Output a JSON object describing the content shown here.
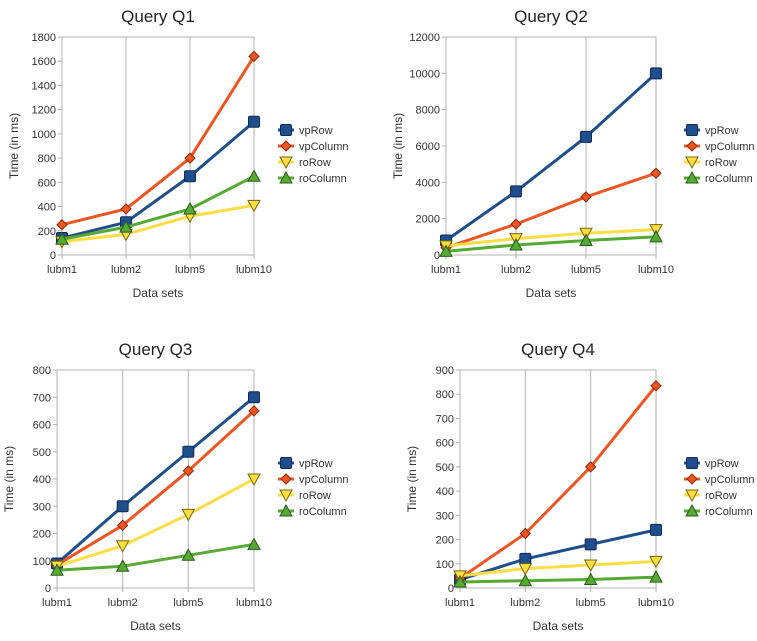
{
  "chart_data": [
    {
      "type": "line",
      "title": "Query Q1",
      "xlabel": "Data sets",
      "ylabel": "Time (in ms)",
      "categories": [
        "lubm1",
        "lubm2",
        "lubm5",
        "lubm10"
      ],
      "ylim": [
        0,
        1800
      ],
      "yticks": [
        0,
        200,
        400,
        600,
        800,
        1000,
        1200,
        1400,
        1600,
        1800
      ],
      "grid": "vertical",
      "legend": "right",
      "series": [
        {
          "name": "vpRow",
          "values": [
            140,
            270,
            650,
            1100
          ],
          "color": "#1f4e8c",
          "marker": "square"
        },
        {
          "name": "vpColumn",
          "values": [
            250,
            380,
            800,
            1640
          ],
          "color": "#ee5522",
          "marker": "diamond"
        },
        {
          "name": "roRow",
          "values": [
            110,
            170,
            320,
            410
          ],
          "color": "#ffdd44",
          "marker": "triangle-down"
        },
        {
          "name": "roColumn",
          "values": [
            130,
            230,
            380,
            650
          ],
          "color": "#55aa33",
          "marker": "triangle-up"
        }
      ]
    },
    {
      "type": "line",
      "title": "Query Q2",
      "xlabel": "Data sets",
      "ylabel": "Time (in ms)",
      "categories": [
        "lubm1",
        "lubm2",
        "lubm5",
        "lubm10"
      ],
      "ylim": [
        0,
        12000
      ],
      "yticks": [
        0,
        2000,
        4000,
        6000,
        8000,
        10000,
        12000
      ],
      "grid": "vertical",
      "legend": "right",
      "series": [
        {
          "name": "vpRow",
          "values": [
            800,
            3500,
            6500,
            10000
          ],
          "color": "#1f4e8c",
          "marker": "square"
        },
        {
          "name": "vpColumn",
          "values": [
            400,
            1700,
            3200,
            4500
          ],
          "color": "#ee5522",
          "marker": "diamond"
        },
        {
          "name": "roRow",
          "values": [
            500,
            900,
            1200,
            1400
          ],
          "color": "#ffdd44",
          "marker": "triangle-down"
        },
        {
          "name": "roColumn",
          "values": [
            200,
            550,
            800,
            1000
          ],
          "color": "#55aa33",
          "marker": "triangle-up"
        }
      ]
    },
    {
      "type": "line",
      "title": "Query Q3",
      "xlabel": "Data sets",
      "ylabel": "Time (in ms)",
      "categories": [
        "lubm1",
        "lubm2",
        "lubm5",
        "lubm10"
      ],
      "ylim": [
        0,
        800
      ],
      "yticks": [
        0,
        100,
        200,
        300,
        400,
        500,
        600,
        700,
        800
      ],
      "grid": "vertical",
      "legend": "right",
      "series": [
        {
          "name": "vpRow",
          "values": [
            90,
            300,
            500,
            700
          ],
          "color": "#1f4e8c",
          "marker": "square"
        },
        {
          "name": "vpColumn",
          "values": [
            85,
            230,
            430,
            650
          ],
          "color": "#ee5522",
          "marker": "diamond"
        },
        {
          "name": "roRow",
          "values": [
            80,
            155,
            270,
            400
          ],
          "color": "#ffdd44",
          "marker": "triangle-down"
        },
        {
          "name": "roColumn",
          "values": [
            65,
            80,
            120,
            160
          ],
          "color": "#55aa33",
          "marker": "triangle-up"
        }
      ]
    },
    {
      "type": "line",
      "title": "Query Q4",
      "xlabel": "Data sets",
      "ylabel": "Time (in ms)",
      "categories": [
        "lubm1",
        "lubm2",
        "lubm5",
        "lubm10"
      ],
      "ylim": [
        0,
        900
      ],
      "yticks": [
        0,
        100,
        200,
        300,
        400,
        500,
        600,
        700,
        800,
        900
      ],
      "grid": "vertical",
      "legend": "right",
      "series": [
        {
          "name": "vpRow",
          "values": [
            35,
            120,
            180,
            240
          ],
          "color": "#1f4e8c",
          "marker": "square"
        },
        {
          "name": "vpColumn",
          "values": [
            40,
            225,
            500,
            835
          ],
          "color": "#ee5522",
          "marker": "diamond"
        },
        {
          "name": "roRow",
          "values": [
            50,
            80,
            95,
            110
          ],
          "color": "#ffdd44",
          "marker": "triangle-down"
        },
        {
          "name": "roColumn",
          "values": [
            25,
            30,
            35,
            45
          ],
          "color": "#55aa33",
          "marker": "triangle-up"
        }
      ]
    }
  ]
}
